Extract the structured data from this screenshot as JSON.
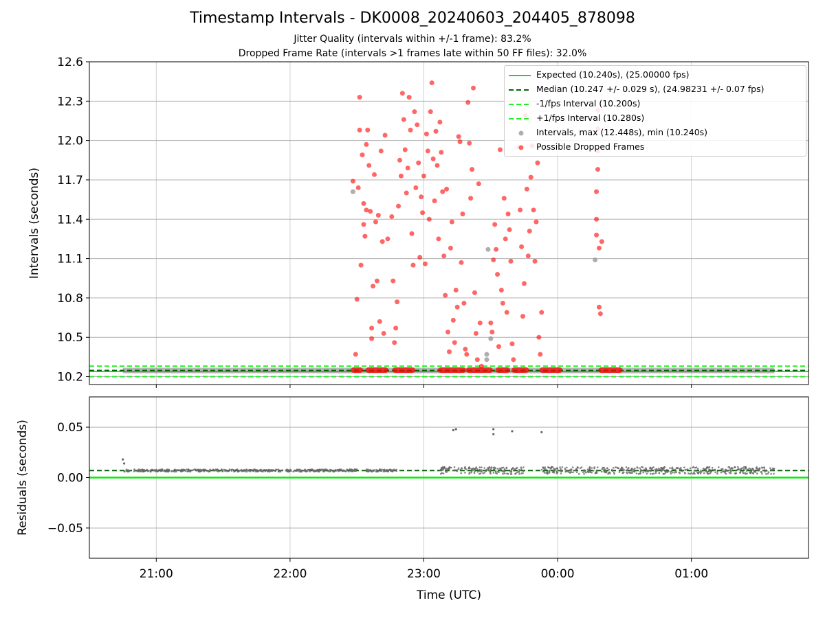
{
  "title": "Timestamp Intervals - DK0008_20240603_204405_878098",
  "subtitle1": "Jitter Quality (intervals within +/-1 frame): 83.2%",
  "subtitle2": "Dropped Frame Rate (intervals >1 frames late within 50 FF files): 32.0%",
  "colors": {
    "expected": "#00ee00",
    "median": "#006400",
    "fps_band": "#22ee22",
    "intervals": "#9a9a9a",
    "dropped": "#ff0000",
    "residuals": "#666666"
  },
  "legend": [
    {
      "label": "Expected (10.240s), (25.00000 fps)"
    },
    {
      "label": "Median (10.247 +/- 0.029 s), (24.98231 +/- 0.07 fps)"
    },
    {
      "label": "-1/fps Interval (10.200s)"
    },
    {
      "label": "+1/fps Interval (10.280s)"
    },
    {
      "label": "Intervals, max (12.448s), min (10.240s)"
    },
    {
      "label": "Possible Dropped Frames"
    }
  ],
  "chart_data": [
    {
      "type": "scatter",
      "xlabel": "",
      "ylabel": "Intervals (seconds)",
      "x_unit": "hours (UTC)",
      "xlim": [
        20.5,
        25.875
      ],
      "ylim": [
        10.14,
        12.6
      ],
      "yticks": [
        "10.2",
        "10.5",
        "10.8",
        "11.1",
        "11.4",
        "11.7",
        "12.0",
        "12.3",
        "12.6"
      ],
      "grid": true,
      "legend_position": "top-right",
      "reference_lines": [
        {
          "name": "Expected",
          "y": 10.24,
          "style": "solid"
        },
        {
          "name": "Median",
          "y": 10.247,
          "style": "dashed"
        },
        {
          "name": "-1/fps Interval",
          "y": 10.2,
          "style": "dashed"
        },
        {
          "name": "+1/fps Interval",
          "y": 10.28,
          "style": "dashed"
        }
      ],
      "series": [
        {
          "name": "Intervals",
          "x_range": [
            20.75,
            25.62
          ],
          "baseline_y": 10.247,
          "points": [
            [
              22.47,
              11.61
            ],
            [
              23.48,
              11.17
            ],
            [
              23.5,
              10.49
            ],
            [
              23.47,
              10.37
            ],
            [
              23.47,
              10.33
            ],
            [
              24.28,
              11.09
            ]
          ]
        },
        {
          "name": "Possible Dropped Frames",
          "baseline_clusters": [
            [
              22.47,
              22.53
            ],
            [
              22.58,
              22.72
            ],
            [
              22.78,
              22.92
            ],
            [
              23.12,
              23.3
            ],
            [
              23.33,
              23.5
            ],
            [
              23.55,
              23.63
            ],
            [
              23.67,
              23.77
            ],
            [
              23.88,
              24.02
            ],
            [
              24.32,
              24.47
            ]
          ],
          "baseline_y": 10.25,
          "points": [
            [
              22.47,
              11.69
            ],
            [
              22.49,
              10.37
            ],
            [
              22.5,
              10.79
            ],
            [
              22.51,
              11.64
            ],
            [
              22.52,
              12.33
            ],
            [
              22.52,
              12.08
            ],
            [
              22.53,
              11.05
            ],
            [
              22.54,
              11.89
            ],
            [
              22.55,
              11.52
            ],
            [
              22.55,
              11.36
            ],
            [
              22.56,
              11.27
            ],
            [
              22.57,
              11.47
            ],
            [
              22.57,
              11.97
            ],
            [
              22.58,
              12.08
            ],
            [
              22.59,
              11.81
            ],
            [
              22.6,
              11.46
            ],
            [
              22.61,
              10.57
            ],
            [
              22.61,
              10.49
            ],
            [
              22.62,
              10.89
            ],
            [
              22.63,
              11.74
            ],
            [
              22.64,
              11.38
            ],
            [
              22.65,
              10.93
            ],
            [
              22.66,
              11.43
            ],
            [
              22.67,
              10.62
            ],
            [
              22.68,
              11.92
            ],
            [
              22.69,
              11.23
            ],
            [
              22.7,
              10.53
            ],
            [
              22.71,
              12.04
            ],
            [
              22.73,
              11.25
            ],
            [
              22.76,
              11.42
            ],
            [
              22.77,
              10.93
            ],
            [
              22.78,
              10.46
            ],
            [
              22.79,
              10.57
            ],
            [
              22.8,
              10.77
            ],
            [
              22.81,
              11.5
            ],
            [
              22.82,
              11.85
            ],
            [
              22.83,
              11.73
            ],
            [
              22.84,
              12.36
            ],
            [
              22.85,
              12.16
            ],
            [
              22.86,
              11.93
            ],
            [
              22.87,
              11.6
            ],
            [
              22.88,
              11.79
            ],
            [
              22.89,
              12.33
            ],
            [
              22.9,
              12.08
            ],
            [
              22.91,
              11.29
            ],
            [
              22.92,
              11.05
            ],
            [
              22.93,
              12.22
            ],
            [
              22.94,
              11.64
            ],
            [
              22.95,
              12.12
            ],
            [
              22.96,
              11.83
            ],
            [
              22.97,
              11.11
            ],
            [
              22.98,
              11.57
            ],
            [
              22.99,
              11.45
            ],
            [
              23.0,
              11.73
            ],
            [
              23.01,
              11.06
            ],
            [
              23.02,
              12.05
            ],
            [
              23.03,
              11.92
            ],
            [
              23.04,
              11.4
            ],
            [
              23.05,
              12.22
            ],
            [
              23.06,
              12.44
            ],
            [
              23.07,
              11.86
            ],
            [
              23.08,
              11.54
            ],
            [
              23.09,
              12.07
            ],
            [
              23.1,
              11.81
            ],
            [
              23.11,
              11.25
            ],
            [
              23.12,
              12.14
            ],
            [
              23.13,
              11.91
            ],
            [
              23.14,
              11.61
            ],
            [
              23.15,
              11.12
            ],
            [
              23.16,
              10.82
            ],
            [
              23.17,
              11.63
            ],
            [
              23.18,
              10.54
            ],
            [
              23.19,
              10.39
            ],
            [
              23.2,
              11.18
            ],
            [
              23.21,
              11.38
            ],
            [
              23.22,
              10.63
            ],
            [
              23.23,
              10.46
            ],
            [
              23.24,
              10.86
            ],
            [
              23.25,
              10.73
            ],
            [
              23.26,
              12.03
            ],
            [
              23.27,
              11.99
            ],
            [
              23.28,
              11.07
            ],
            [
              23.29,
              11.44
            ],
            [
              23.3,
              10.76
            ],
            [
              23.31,
              10.41
            ],
            [
              23.32,
              10.37
            ],
            [
              23.33,
              12.29
            ],
            [
              23.34,
              11.98
            ],
            [
              23.35,
              11.56
            ],
            [
              23.36,
              11.78
            ],
            [
              23.37,
              12.4
            ],
            [
              23.38,
              10.84
            ],
            [
              23.39,
              10.53
            ],
            [
              23.4,
              10.33
            ],
            [
              23.41,
              11.67
            ],
            [
              23.42,
              10.61
            ],
            [
              23.43,
              10.28
            ],
            [
              23.5,
              10.61
            ],
            [
              23.51,
              10.54
            ],
            [
              23.52,
              11.09
            ],
            [
              23.53,
              11.36
            ],
            [
              23.54,
              11.17
            ],
            [
              23.55,
              10.98
            ],
            [
              23.56,
              10.43
            ],
            [
              23.57,
              11.93
            ],
            [
              23.58,
              10.86
            ],
            [
              23.59,
              10.76
            ],
            [
              23.6,
              11.56
            ],
            [
              23.61,
              11.25
            ],
            [
              23.62,
              10.69
            ],
            [
              23.63,
              11.44
            ],
            [
              23.64,
              11.32
            ],
            [
              23.65,
              11.08
            ],
            [
              23.66,
              10.45
            ],
            [
              23.67,
              10.33
            ],
            [
              23.71,
              11.95
            ],
            [
              23.72,
              11.47
            ],
            [
              23.73,
              11.19
            ],
            [
              23.74,
              10.66
            ],
            [
              23.75,
              10.91
            ],
            [
              23.76,
              12.19
            ],
            [
              23.77,
              11.63
            ],
            [
              23.78,
              11.12
            ],
            [
              23.79,
              11.31
            ],
            [
              23.8,
              11.72
            ],
            [
              23.81,
              11.96
            ],
            [
              23.82,
              11.47
            ],
            [
              23.83,
              11.08
            ],
            [
              23.84,
              11.38
            ],
            [
              23.85,
              11.83
            ],
            [
              23.86,
              10.5
            ],
            [
              23.87,
              10.37
            ],
            [
              23.88,
              10.69
            ],
            [
              24.29,
              11.28
            ],
            [
              24.29,
              11.4
            ],
            [
              24.29,
              11.61
            ],
            [
              24.3,
              11.78
            ],
            [
              24.3,
              11.92
            ],
            [
              24.3,
              12.09
            ],
            [
              24.3,
              12.23
            ],
            [
              24.31,
              11.18
            ],
            [
              24.31,
              10.73
            ],
            [
              24.32,
              10.68
            ],
            [
              24.33,
              11.23
            ]
          ]
        }
      ]
    },
    {
      "type": "scatter",
      "xlabel": "Time (UTC)",
      "ylabel": "Residuals (seconds)",
      "xlim": [
        20.5,
        25.875
      ],
      "ylim": [
        -0.08,
        0.08
      ],
      "yticks": [
        "−0.05",
        "0.00",
        "0.05"
      ],
      "xticks": [
        {
          "value": 21,
          "label": "21:00"
        },
        {
          "value": 22,
          "label": "22:00"
        },
        {
          "value": 23,
          "label": "23:00"
        },
        {
          "value": 24,
          "label": "00:00"
        },
        {
          "value": 25,
          "label": "01:00"
        }
      ],
      "grid": true,
      "reference_lines": [
        {
          "name": "Zero",
          "y": 0.0,
          "style": "solid"
        },
        {
          "name": "Median residual",
          "y": 0.007,
          "style": "dashed"
        }
      ],
      "series": [
        {
          "name": "Residuals",
          "dense_ranges": [
            [
              20.76,
              22.5
            ],
            [
              22.57,
              22.8
            ],
            [
              23.12,
              23.75
            ],
            [
              23.88,
              24.3
            ],
            [
              24.32,
              25.62
            ]
          ],
          "baseline_y": 0.007,
          "points": [
            [
              20.75,
              0.018
            ],
            [
              20.76,
              0.014
            ],
            [
              23.22,
              0.047
            ],
            [
              23.24,
              0.048
            ],
            [
              23.52,
              0.048
            ],
            [
              23.52,
              0.043
            ],
            [
              23.66,
              0.046
            ],
            [
              23.88,
              0.045
            ]
          ]
        }
      ]
    }
  ]
}
